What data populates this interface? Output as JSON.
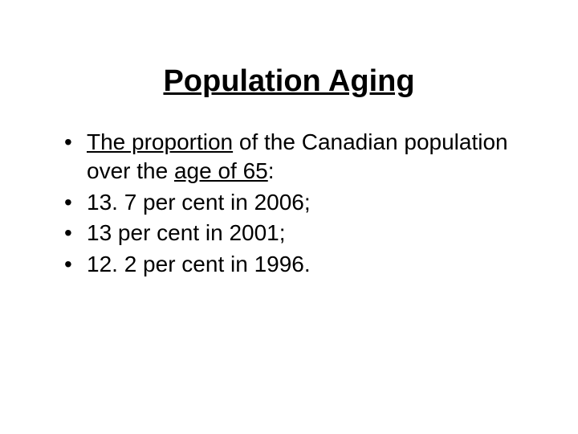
{
  "slide": {
    "title": "Population Aging",
    "title_fontsize": 38,
    "title_weight": "bold",
    "title_decoration": "underline",
    "background_color": "#ffffff",
    "text_color": "#000000",
    "body_fontsize": 28,
    "bullets": [
      {
        "segments": [
          {
            "text": "The proportion",
            "underline": true
          },
          {
            "text": " of the Canadian population over the ",
            "underline": false
          },
          {
            "text": "age of 65",
            "underline": true
          },
          {
            "text": ":",
            "underline": false
          }
        ]
      },
      {
        "segments": [
          {
            "text": "13. 7 per cent in 2006;",
            "underline": false
          }
        ]
      },
      {
        "segments": [
          {
            "text": " 13 per cent in 2001;",
            "underline": false
          }
        ]
      },
      {
        "segments": [
          {
            "text": "12. 2 per cent in 1996.",
            "underline": false
          }
        ]
      }
    ]
  }
}
